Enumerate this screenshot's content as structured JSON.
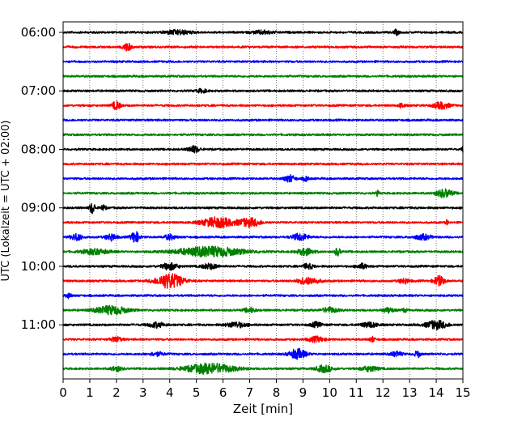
{
  "chart_data": {
    "type": "line",
    "title": "",
    "xlabel": "Zeit  [min]",
    "ylabel": "UTC (Lokalzeit = UTC + 02:00)",
    "xlim": [
      0,
      15
    ],
    "xticks": [
      0,
      1,
      2,
      3,
      4,
      5,
      6,
      7,
      8,
      9,
      10,
      11,
      12,
      13,
      14,
      15
    ],
    "ytick_labels": [
      "06:00",
      "07:00",
      "08:00",
      "09:00",
      "10:00",
      "11:00"
    ],
    "ytick_traces": [
      0,
      4,
      8,
      12,
      16,
      20
    ],
    "grid": "vertical dotted",
    "colors": [
      "#000000",
      "#ff0000",
      "#0000ff",
      "#008000"
    ],
    "traces": [
      {
        "label": "06:00",
        "color": "#000000",
        "bursts": [
          {
            "t": 4.3,
            "a": 2.5,
            "w": 0.5
          },
          {
            "t": 7.5,
            "a": 2,
            "w": 0.4
          },
          {
            "t": 12.5,
            "a": 3,
            "w": 0.1
          }
        ]
      },
      {
        "label": "06:15",
        "color": "#ff0000",
        "bursts": [
          {
            "t": 2.4,
            "a": 5,
            "w": 0.15
          }
        ]
      },
      {
        "label": "06:30",
        "color": "#0000ff",
        "bursts": []
      },
      {
        "label": "06:45",
        "color": "#008000",
        "bursts": []
      },
      {
        "label": "07:00",
        "color": "#000000",
        "bursts": [
          {
            "t": 5.2,
            "a": 2,
            "w": 0.2
          }
        ]
      },
      {
        "label": "07:15",
        "color": "#ff0000",
        "bursts": [
          {
            "t": 2.0,
            "a": 5,
            "w": 0.15
          },
          {
            "t": 12.7,
            "a": 3,
            "w": 0.1
          },
          {
            "t": 14.2,
            "a": 4,
            "w": 0.3
          }
        ]
      },
      {
        "label": "07:30",
        "color": "#0000ff",
        "bursts": []
      },
      {
        "label": "07:45",
        "color": "#008000",
        "bursts": []
      },
      {
        "label": "08:00",
        "color": "#000000",
        "bursts": [
          {
            "t": 4.9,
            "a": 4,
            "w": 0.2
          },
          {
            "t": 15.0,
            "a": 3,
            "w": 0.05
          }
        ]
      },
      {
        "label": "08:15",
        "color": "#ff0000",
        "bursts": []
      },
      {
        "label": "08:30",
        "color": "#0000ff",
        "bursts": [
          {
            "t": 8.5,
            "a": 4,
            "w": 0.2
          },
          {
            "t": 9.1,
            "a": 3,
            "w": 0.1
          }
        ]
      },
      {
        "label": "08:45",
        "color": "#008000",
        "bursts": [
          {
            "t": 11.8,
            "a": 3,
            "w": 0.05
          },
          {
            "t": 14.3,
            "a": 5,
            "w": 0.3
          }
        ]
      },
      {
        "label": "09:00",
        "color": "#000000",
        "bursts": [
          {
            "t": 1.1,
            "a": 7,
            "w": 0.1
          },
          {
            "t": 1.5,
            "a": 3,
            "w": 0.1
          }
        ]
      },
      {
        "label": "09:15",
        "color": "#ff0000",
        "bursts": [
          {
            "t": 5.8,
            "a": 6,
            "w": 0.6
          },
          {
            "t": 7.0,
            "a": 5,
            "w": 0.4
          },
          {
            "t": 14.4,
            "a": 3,
            "w": 0.05
          }
        ]
      },
      {
        "label": "09:30",
        "color": "#0000ff",
        "bursts": [
          {
            "t": 0.5,
            "a": 4,
            "w": 0.2
          },
          {
            "t": 1.8,
            "a": 4,
            "w": 0.2
          },
          {
            "t": 2.7,
            "a": 7,
            "w": 0.15
          },
          {
            "t": 4.0,
            "a": 3,
            "w": 0.2
          },
          {
            "t": 8.9,
            "a": 4,
            "w": 0.3
          },
          {
            "t": 13.5,
            "a": 3,
            "w": 0.3
          }
        ]
      },
      {
        "label": "09:45",
        "color": "#008000",
        "bursts": [
          {
            "t": 1.2,
            "a": 3,
            "w": 0.5
          },
          {
            "t": 5.5,
            "a": 6,
            "w": 1.2
          },
          {
            "t": 9.1,
            "a": 4,
            "w": 0.3
          },
          {
            "t": 10.3,
            "a": 5,
            "w": 0.1
          }
        ]
      },
      {
        "label": "10:00",
        "color": "#000000",
        "bursts": [
          {
            "t": 4.0,
            "a": 4,
            "w": 0.3
          },
          {
            "t": 5.5,
            "a": 3,
            "w": 0.3
          },
          {
            "t": 9.2,
            "a": 3,
            "w": 0.2
          },
          {
            "t": 11.2,
            "a": 3,
            "w": 0.2
          }
        ]
      },
      {
        "label": "10:15",
        "color": "#ff0000",
        "bursts": [
          {
            "t": 4.0,
            "a": 9,
            "w": 0.5
          },
          {
            "t": 9.2,
            "a": 4,
            "w": 0.4
          },
          {
            "t": 12.8,
            "a": 3,
            "w": 0.2
          },
          {
            "t": 14.1,
            "a": 6,
            "w": 0.2
          }
        ]
      },
      {
        "label": "10:30",
        "color": "#0000ff",
        "bursts": [
          {
            "t": 0.2,
            "a": 3,
            "w": 0.1
          }
        ]
      },
      {
        "label": "10:45",
        "color": "#008000",
        "bursts": [
          {
            "t": 1.8,
            "a": 5,
            "w": 0.6
          },
          {
            "t": 7.0,
            "a": 3,
            "w": 0.2
          },
          {
            "t": 10.0,
            "a": 3,
            "w": 0.3
          },
          {
            "t": 12.2,
            "a": 3,
            "w": 0.2
          },
          {
            "t": 12.8,
            "a": 2,
            "w": 0.1
          }
        ]
      },
      {
        "label": "11:00",
        "color": "#000000",
        "bursts": [
          {
            "t": 3.5,
            "a": 3,
            "w": 0.3
          },
          {
            "t": 6.5,
            "a": 3,
            "w": 0.4
          },
          {
            "t": 9.5,
            "a": 3,
            "w": 0.2
          },
          {
            "t": 11.5,
            "a": 3,
            "w": 0.3
          },
          {
            "t": 14.0,
            "a": 5,
            "w": 0.4
          }
        ]
      },
      {
        "label": "11:15",
        "color": "#ff0000",
        "bursts": [
          {
            "t": 2.0,
            "a": 3,
            "w": 0.2
          },
          {
            "t": 9.5,
            "a": 3,
            "w": 0.3
          },
          {
            "t": 11.6,
            "a": 3,
            "w": 0.1
          }
        ]
      },
      {
        "label": "11:30",
        "color": "#0000ff",
        "bursts": [
          {
            "t": 3.5,
            "a": 2,
            "w": 0.3
          },
          {
            "t": 8.8,
            "a": 6,
            "w": 0.3
          },
          {
            "t": 12.5,
            "a": 3,
            "w": 0.2
          },
          {
            "t": 13.3,
            "a": 4,
            "w": 0.1
          }
        ]
      },
      {
        "label": "11:45",
        "color": "#008000",
        "bursts": [
          {
            "t": 2.0,
            "a": 3,
            "w": 0.2
          },
          {
            "t": 5.5,
            "a": 6,
            "w": 0.9
          },
          {
            "t": 9.8,
            "a": 4,
            "w": 0.3
          },
          {
            "t": 11.5,
            "a": 3,
            "w": 0.3
          }
        ]
      }
    ]
  }
}
